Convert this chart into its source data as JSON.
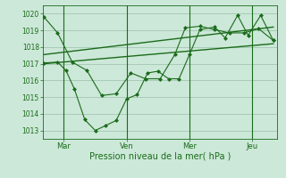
{
  "bg_color": "#cce8d8",
  "grid_color": "#9abfaa",
  "line_color": "#1a6b1a",
  "marker_color": "#1a6b1a",
  "xlabel": "Pression niveau de la mer( hPa )",
  "ylim": [
    1012.5,
    1020.5
  ],
  "yticks": [
    1013,
    1014,
    1015,
    1016,
    1017,
    1018,
    1019,
    1020
  ],
  "xtick_labels": [
    "Mar",
    "Ven",
    "Mer",
    "Jeu"
  ],
  "xtick_positions": [
    1,
    4,
    7,
    10
  ],
  "vline_positions": [
    1,
    4,
    7,
    10
  ],
  "xlim": [
    0,
    11.2
  ],
  "line1_x": [
    0.05,
    0.7,
    1.4,
    2.1,
    2.8,
    3.5,
    4.2,
    4.9,
    5.6,
    6.3,
    6.8,
    7.5,
    8.2,
    8.9,
    9.6,
    10.3,
    11.0
  ],
  "line1_y": [
    1019.8,
    1018.85,
    1017.1,
    1016.6,
    1015.1,
    1015.2,
    1016.45,
    1016.1,
    1016.1,
    1017.55,
    1019.15,
    1019.25,
    1019.05,
    1018.85,
    1018.85,
    1019.1,
    1018.4
  ],
  "line2_x": [
    0.05,
    0.7,
    1.1,
    1.5,
    2.0,
    2.5,
    3.0,
    3.5,
    4.0,
    4.5,
    5.0,
    5.5,
    6.0,
    6.5,
    7.0,
    7.5,
    8.2,
    8.7,
    9.3,
    9.8,
    10.4,
    11.0
  ],
  "line2_y": [
    1017.05,
    1017.1,
    1016.6,
    1015.5,
    1013.65,
    1013.0,
    1013.3,
    1013.6,
    1014.9,
    1015.15,
    1016.45,
    1016.55,
    1016.1,
    1016.1,
    1017.55,
    1019.05,
    1019.2,
    1018.55,
    1019.9,
    1018.7,
    1019.9,
    1018.4
  ],
  "line3_x": [
    0.05,
    11.0
  ],
  "line3_y": [
    1017.0,
    1018.2
  ],
  "line4_x": [
    0.05,
    11.0
  ],
  "line4_y": [
    1017.55,
    1019.2
  ]
}
